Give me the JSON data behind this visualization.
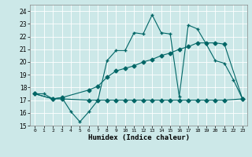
{
  "xlabel": "Humidex (Indice chaleur)",
  "xlim": [
    -0.5,
    23.5
  ],
  "ylim": [
    15,
    24.5
  ],
  "yticks": [
    15,
    16,
    17,
    18,
    19,
    20,
    21,
    22,
    23,
    24
  ],
  "xticks": [
    0,
    1,
    2,
    3,
    4,
    5,
    6,
    7,
    8,
    9,
    10,
    11,
    12,
    13,
    14,
    15,
    16,
    17,
    18,
    19,
    20,
    21,
    22,
    23
  ],
  "bg_color": "#cce8e8",
  "grid_color": "#b0d0d0",
  "line_color": "#006666",
  "series": [
    {
      "x": [
        0,
        1,
        2,
        3,
        4,
        5,
        6,
        7,
        8,
        9,
        10,
        11,
        12,
        13,
        14,
        15,
        16,
        17,
        18,
        19,
        20,
        21,
        22,
        23
      ],
      "y": [
        17.5,
        17.5,
        17.1,
        17.2,
        16.1,
        15.3,
        16.1,
        17.0,
        20.1,
        20.9,
        20.9,
        22.3,
        22.2,
        23.7,
        22.3,
        22.2,
        17.3,
        22.9,
        22.6,
        21.4,
        20.1,
        19.9,
        18.6,
        17.1
      ]
    },
    {
      "x": [
        0,
        2,
        3,
        6,
        7,
        8,
        9,
        10,
        11,
        12,
        13,
        14,
        15,
        16,
        17,
        18,
        19,
        20,
        21,
        23
      ],
      "y": [
        17.5,
        17.1,
        17.2,
        17.8,
        18.1,
        18.8,
        19.3,
        19.5,
        19.7,
        20.0,
        20.2,
        20.5,
        20.7,
        21.0,
        21.2,
        21.5,
        21.5,
        21.5,
        21.4,
        17.1
      ]
    },
    {
      "x": [
        0,
        2,
        3,
        6,
        7,
        8,
        9,
        10,
        11,
        12,
        13,
        14,
        15,
        16,
        17,
        18,
        19,
        20,
        21,
        23
      ],
      "y": [
        17.5,
        17.1,
        17.1,
        17.0,
        17.0,
        17.0,
        17.0,
        17.0,
        17.0,
        17.0,
        17.0,
        17.0,
        17.0,
        17.0,
        17.0,
        17.0,
        17.0,
        17.0,
        17.0,
        17.1
      ]
    }
  ]
}
